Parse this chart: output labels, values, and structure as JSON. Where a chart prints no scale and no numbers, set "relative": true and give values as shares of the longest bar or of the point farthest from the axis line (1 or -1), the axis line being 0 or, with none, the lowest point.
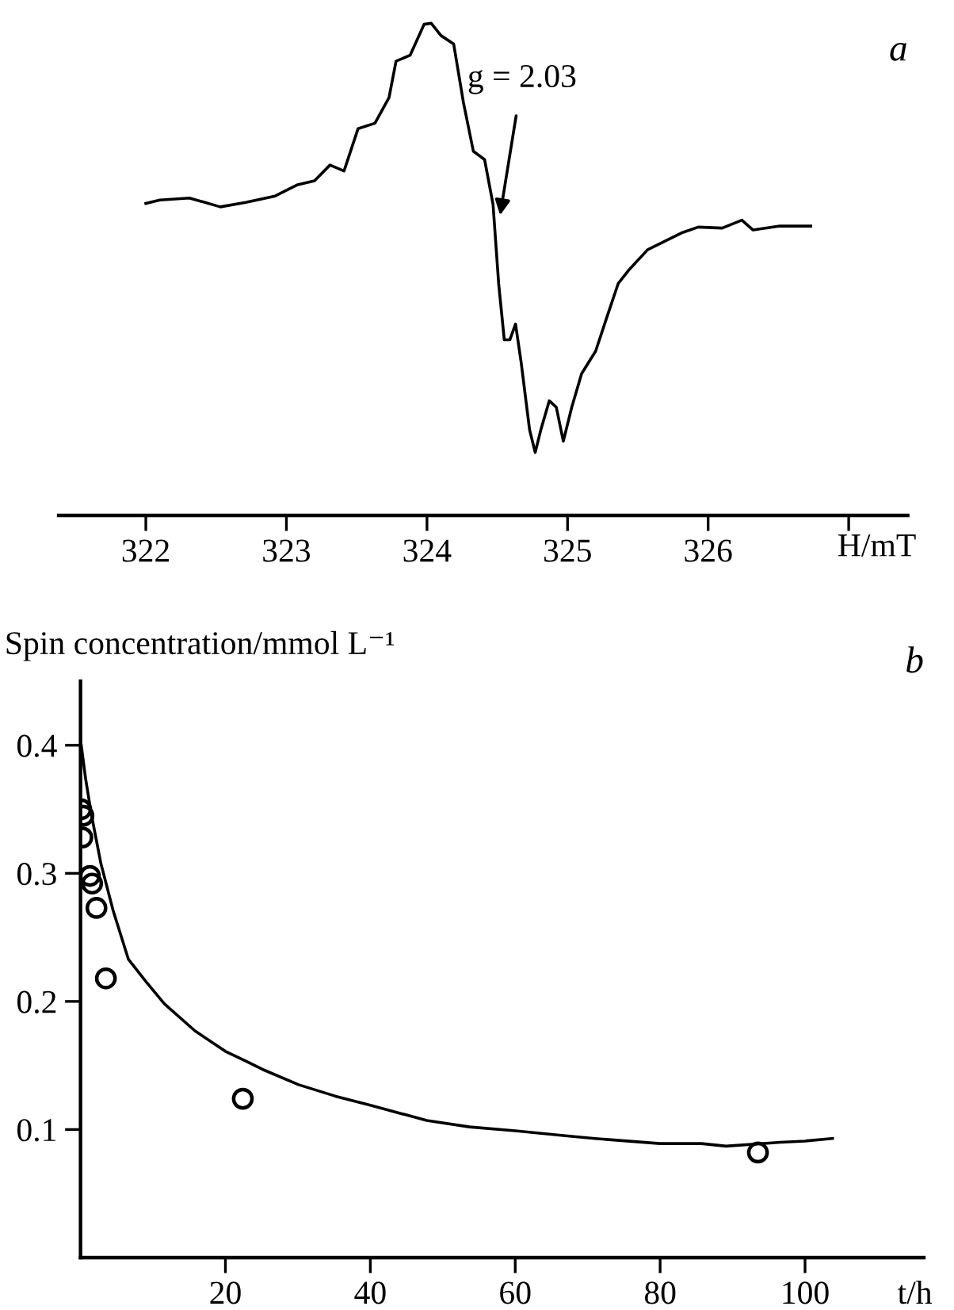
{
  "chart_data": [
    {
      "type": "line",
      "title": "a",
      "xlabel": "H/mT",
      "relative": true,
      "xlim": [
        321.38,
        327.42
      ],
      "xticks": [
        322,
        323,
        324,
        325,
        326,
        {
          "value": 327,
          "label": null
        }
      ],
      "tick_labels": "x",
      "annotations": [
        {
          "text": "g = 2.03",
          "x": 324.52,
          "y": 0.61
        }
      ],
      "series": [
        {
          "color": "#000000",
          "x": [
            322.0,
            322.1,
            322.31,
            322.53,
            322.71,
            322.92,
            323.08,
            323.2,
            323.31,
            323.41,
            323.51,
            323.63,
            323.73,
            323.78,
            323.88,
            323.98,
            324.03,
            324.1,
            324.19,
            324.26,
            324.33,
            324.41,
            324.47,
            324.51,
            324.55,
            324.59,
            324.63,
            324.67,
            324.73,
            324.77,
            324.81,
            324.87,
            324.92,
            324.97,
            325.03,
            325.1,
            325.2,
            325.28,
            325.36,
            325.44,
            325.57,
            325.69,
            325.81,
            325.93,
            326.1,
            326.24,
            326.32,
            326.51,
            326.73
          ],
          "values": [
            0.634,
            0.641,
            0.645,
            0.627,
            0.636,
            0.649,
            0.672,
            0.68,
            0.712,
            0.7,
            0.786,
            0.797,
            0.849,
            0.923,
            0.935,
            0.998,
            1.0,
            0.975,
            0.958,
            0.838,
            0.74,
            0.723,
            0.632,
            0.471,
            0.357,
            0.357,
            0.389,
            0.311,
            0.174,
            0.128,
            0.174,
            0.233,
            0.22,
            0.151,
            0.22,
            0.288,
            0.334,
            0.403,
            0.471,
            0.5,
            0.54,
            0.557,
            0.574,
            0.586,
            0.584,
            0.6,
            0.58,
            0.588,
            0.588
          ]
        }
      ]
    },
    {
      "type": "scatter",
      "title": "b",
      "xlabel": "t/h",
      "ylabel": "Spin concentration/mmol L⁻¹",
      "xlim": [
        0,
        116.4
      ],
      "xticks": [
        20,
        40,
        60,
        80,
        100
      ],
      "ylim": [
        0,
        0.45
      ],
      "yticks": [
        0.1,
        0.2,
        0.3,
        0.4
      ],
      "series": [
        {
          "color": "#000000",
          "marker": "circle",
          "x": [
            0.1,
            0.4,
            0.25,
            1.3,
            1.6,
            2.2,
            3.5,
            22.4,
            93.5
          ],
          "values": [
            0.35,
            0.345,
            0.328,
            0.298,
            0.292,
            0.273,
            0.218,
            0.124,
            0.082
          ]
        },
        {
          "type": "line",
          "color": "#000000",
          "x": [
            0.1,
            0.7,
            1.5,
            2.8,
            4.5,
            6.6,
            9.1,
            11.6,
            15.8,
            20,
            22.6,
            25.1,
            30.1,
            35.2,
            40,
            47.8,
            53.7,
            60,
            67.2,
            71,
            80,
            85.7,
            89.1,
            96.6,
            100,
            103.8
          ],
          "values": [
            0.4,
            0.374,
            0.346,
            0.308,
            0.271,
            0.233,
            0.215,
            0.198,
            0.177,
            0.161,
            0.154,
            0.147,
            0.135,
            0.126,
            0.119,
            0.107,
            0.102,
            0.099,
            0.095,
            0.093,
            0.089,
            0.089,
            0.087,
            0.09,
            0.091,
            0.093
          ]
        }
      ]
    }
  ]
}
